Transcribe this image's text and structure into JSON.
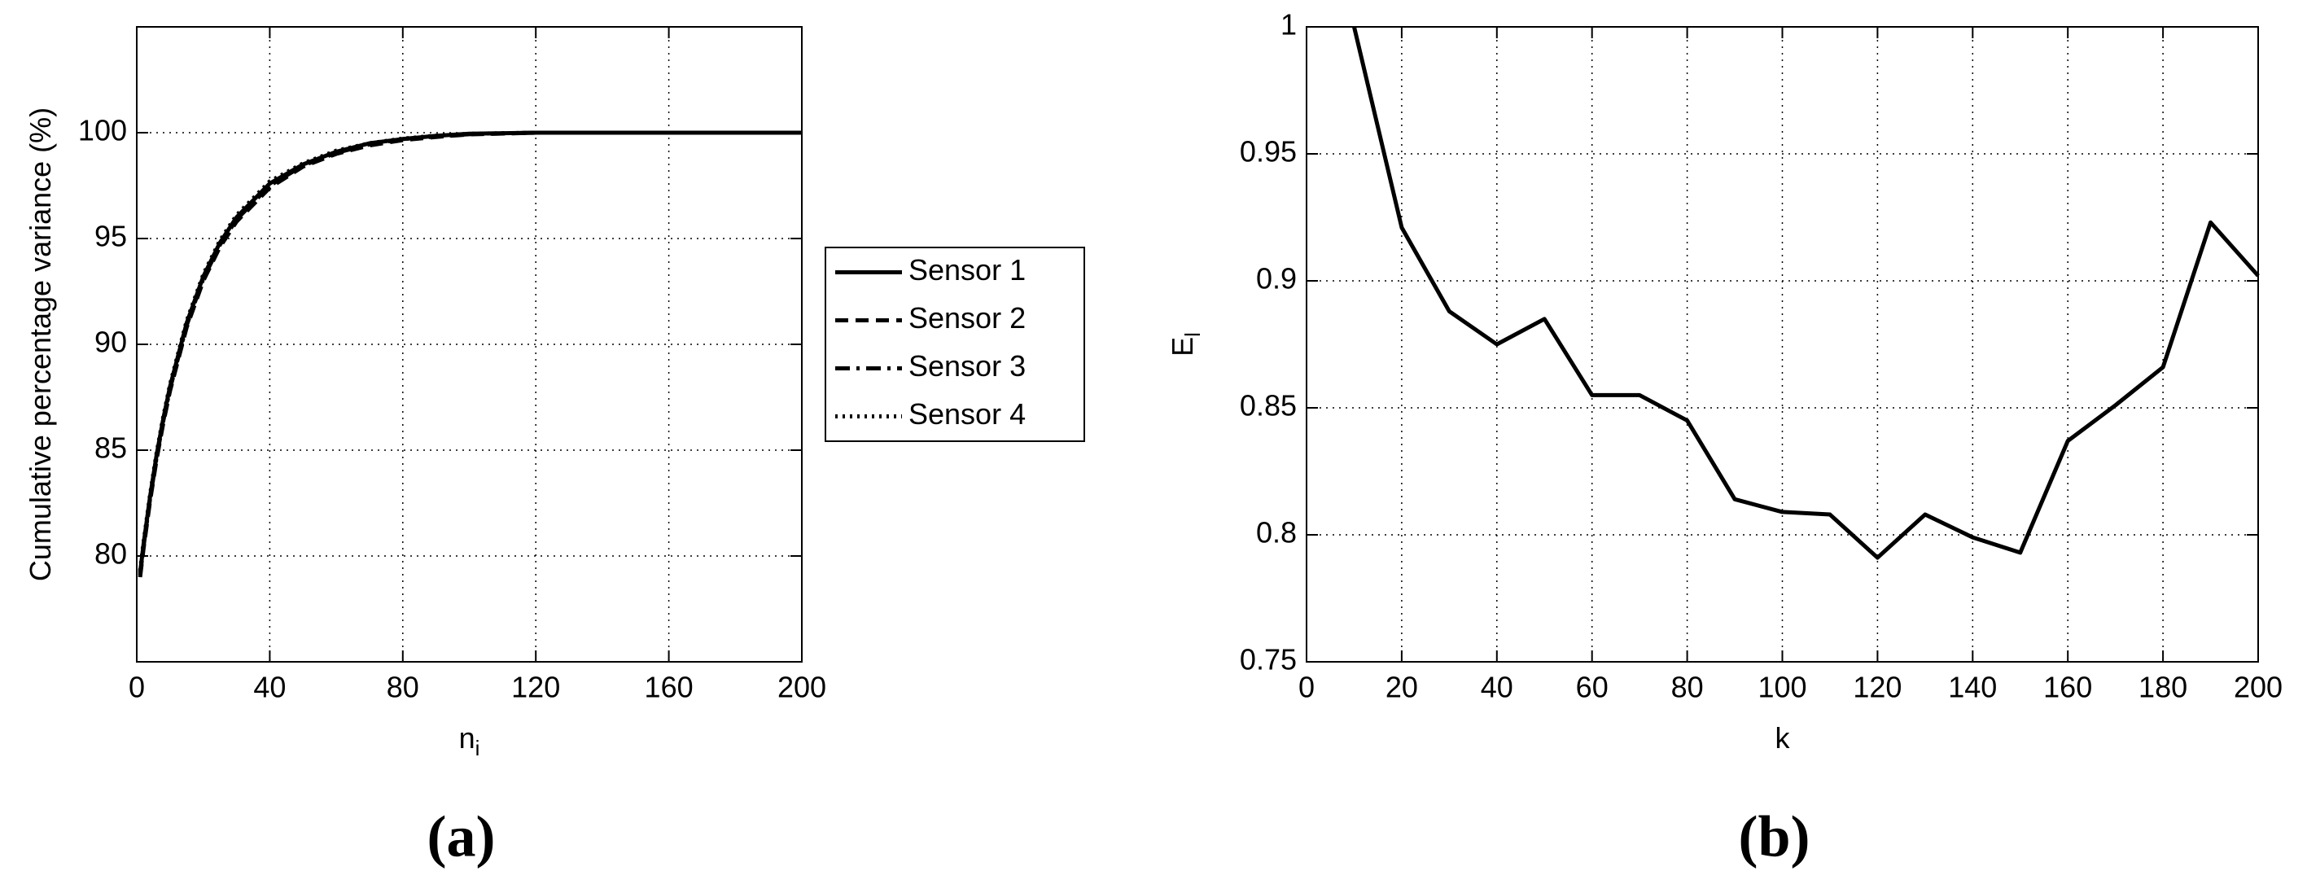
{
  "chart_data": [
    {
      "type": "line",
      "panel": "(a)",
      "xlabel": "n",
      "xlabel_sub": "i",
      "ylabel": "Cumulative percentage variance (%)",
      "xlim": [
        0,
        200
      ],
      "xticks": [
        0,
        40,
        80,
        120,
        160,
        200
      ],
      "ylim": [
        75,
        105
      ],
      "yticks": [
        80,
        85,
        90,
        95,
        100
      ],
      "grid": true,
      "legend": "outside-right",
      "x": [
        1,
        2,
        4,
        6,
        8,
        10,
        15,
        20,
        25,
        30,
        40,
        50,
        60,
        70,
        80,
        90,
        100,
        120,
        140,
        160,
        200
      ],
      "series": [
        {
          "name": "Sensor 1",
          "color": "#000000",
          "style": "solid",
          "values": [
            79.2,
            80.5,
            82.8,
            84.8,
            86.5,
            88.0,
            91.0,
            93.2,
            94.8,
            96.0,
            97.6,
            98.5,
            99.1,
            99.5,
            99.7,
            99.85,
            99.95,
            100,
            100,
            100,
            100
          ]
        },
        {
          "name": "Sensor 2",
          "color": "#000000",
          "style": "dashed",
          "values": [
            79.0,
            80.3,
            82.6,
            84.6,
            86.3,
            87.8,
            90.8,
            93.0,
            94.6,
            95.8,
            97.4,
            98.4,
            99.0,
            99.4,
            99.65,
            99.8,
            99.92,
            100,
            100,
            100,
            100
          ]
        },
        {
          "name": "Sensor 3",
          "color": "#000000",
          "style": "dashdot",
          "values": [
            79.1,
            80.4,
            82.7,
            84.7,
            86.4,
            87.9,
            90.9,
            93.1,
            94.7,
            95.9,
            97.5,
            98.45,
            99.05,
            99.45,
            99.7,
            99.82,
            99.93,
            100,
            100,
            100,
            100
          ]
        },
        {
          "name": "Sensor 4",
          "color": "#000000",
          "style": "dotted",
          "values": [
            79.3,
            80.6,
            82.9,
            84.9,
            86.6,
            88.1,
            91.1,
            93.3,
            94.9,
            96.1,
            97.7,
            98.55,
            99.15,
            99.5,
            99.72,
            99.86,
            99.95,
            100,
            100,
            100,
            100
          ]
        }
      ]
    },
    {
      "type": "line",
      "panel": "(b)",
      "xlabel": "k",
      "ylabel": "E",
      "ylabel_sub": "l",
      "xlim": [
        0,
        200
      ],
      "xticks": [
        0,
        20,
        40,
        60,
        80,
        100,
        120,
        140,
        160,
        180,
        200
      ],
      "ylim": [
        0.75,
        1
      ],
      "yticks": [
        0.75,
        0.8,
        0.85,
        0.9,
        0.95,
        1
      ],
      "grid": true,
      "x": [
        10,
        20,
        30,
        40,
        50,
        60,
        70,
        80,
        90,
        100,
        110,
        120,
        130,
        140,
        150,
        160,
        170,
        180,
        190,
        200
      ],
      "series": [
        {
          "color": "#000000",
          "style": "solid",
          "values": [
            1.0,
            0.921,
            0.888,
            0.875,
            0.885,
            0.855,
            0.855,
            0.845,
            0.814,
            0.809,
            0.808,
            0.791,
            0.808,
            0.799,
            0.793,
            0.837,
            0.851,
            0.866,
            0.923,
            0.902
          ]
        }
      ]
    }
  ]
}
